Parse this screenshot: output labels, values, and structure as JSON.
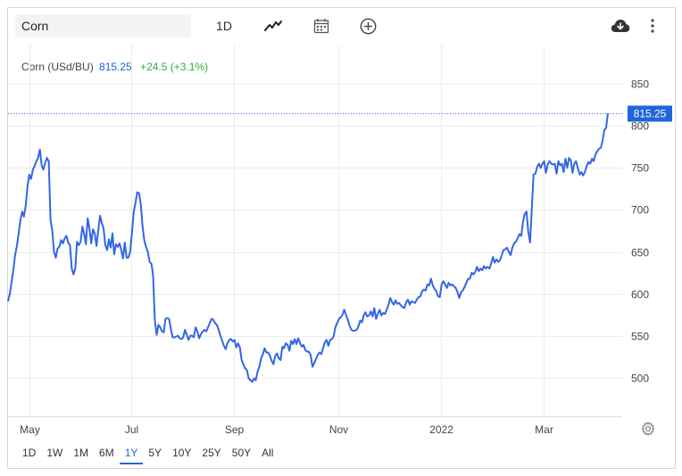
{
  "toolbar": {
    "search_value": "Corn",
    "interval_label": "1D",
    "icons": [
      "line-chart-icon",
      "calendar-icon",
      "add-circle-icon",
      "cloud-download-icon",
      "more-vertical-icon"
    ]
  },
  "header": {
    "name": "Corn (USd/BU)",
    "price": "815.25",
    "change": "+24.5 (+3.1%)",
    "price_color": "#2166d9",
    "change_color": "#2eab3f"
  },
  "timeframes": [
    "1D",
    "1W",
    "1M",
    "6M",
    "1Y",
    "5Y",
    "10Y",
    "25Y",
    "50Y",
    "All"
  ],
  "active_timeframe": "1Y",
  "chart_data": {
    "type": "line",
    "title": "Corn (USd/BU)",
    "xlabel": "",
    "ylabel": "",
    "ylim": [
      454,
      897
    ],
    "y_ticks": [
      500,
      550,
      600,
      650,
      700,
      750,
      800,
      850
    ],
    "x_ticks": [
      "May",
      "Jul",
      "Sep",
      "Nov",
      "2022",
      "Mar"
    ],
    "last_value": 815.25,
    "last_value_label": "815.25",
    "line_color": "#3366e6",
    "grid": true,
    "series": [
      {
        "values": [
          591,
          600,
          614,
          628,
          646,
          657,
          672,
          688,
          698,
          692,
          705,
          728,
          742,
          737,
          748,
          752,
          758,
          762,
          772,
          753,
          748,
          756,
          762,
          758,
          688,
          675,
          650,
          643,
          654,
          656,
          664,
          660,
          666,
          669,
          661,
          658,
          630,
          623,
          630,
          662,
          658,
          662,
          680,
          672,
          659,
          690,
          678,
          660,
          677,
          672,
          657,
          676,
          693,
          684,
          678,
          658,
          652,
          665,
          655,
          672,
          647,
          659,
          656,
          660,
          652,
          642,
          661,
          643,
          643,
          650,
          672,
          697,
          708,
          721,
          720,
          707,
          680,
          664,
          656,
          650,
          638,
          636,
          622,
          568,
          551,
          563,
          560,
          555,
          554,
          570,
          571,
          570,
          558,
          548,
          548,
          549,
          550,
          547,
          546,
          548,
          557,
          551,
          545,
          550,
          550,
          548,
          560,
          555,
          547,
          552,
          555,
          557,
          555,
          560,
          565,
          570,
          569,
          565,
          563,
          557,
          550,
          544,
          538,
          534,
          541,
          545,
          546,
          543,
          545,
          536,
          541,
          536,
          521,
          516,
          511,
          509,
          499,
          497,
          495,
          499,
          497,
          507,
          513,
          523,
          528,
          535,
          530,
          530,
          526,
          520,
          516,
          526,
          529,
          523,
          521,
          537,
          535,
          541,
          539,
          532,
          544,
          540,
          546,
          540,
          547,
          541,
          537,
          539,
          533,
          531,
          531,
          527,
          513,
          517,
          522,
          527,
          530,
          528,
          535,
          542,
          545,
          538,
          545,
          546,
          549,
          560,
          565,
          570,
          572,
          575,
          581,
          575,
          569,
          562,
          557,
          556,
          556,
          557,
          561,
          568,
          566,
          574,
          578,
          573,
          574,
          579,
          573,
          583,
          570,
          576,
          581,
          574,
          577,
          576,
          581,
          587,
          595,
          590,
          587,
          592,
          588,
          589,
          586,
          584,
          583,
          590,
          593,
          587,
          591,
          590,
          589,
          593,
          596,
          597,
          603,
          605,
          604,
          611,
          610,
          618,
          610,
          606,
          603,
          597,
          596,
          611,
          615,
          611,
          607,
          613,
          610,
          611,
          609,
          607,
          602,
          595,
          602,
          604,
          608,
          613,
          618,
          618,
          625,
          623,
          626,
          632,
          627,
          630,
          628,
          633,
          630,
          632,
          630,
          636,
          644,
          637,
          641,
          638,
          640,
          646,
          652,
          653,
          655,
          650,
          646,
          655,
          660,
          662,
          666,
          671,
          669,
          685,
          695,
          698,
          674,
          661,
          702,
          742,
          743,
          751,
          755,
          750,
          755,
          758,
          744,
          754,
          758,
          755,
          754,
          755,
          743,
          758,
          753,
          755,
          745,
          761,
          750,
          762,
          759,
          744,
          755,
          758,
          750,
          742,
          745,
          741,
          745,
          752,
          757,
          755,
          761,
          758,
          766,
          770,
          773,
          774,
          783,
          795,
          798,
          815.25
        ]
      }
    ]
  }
}
